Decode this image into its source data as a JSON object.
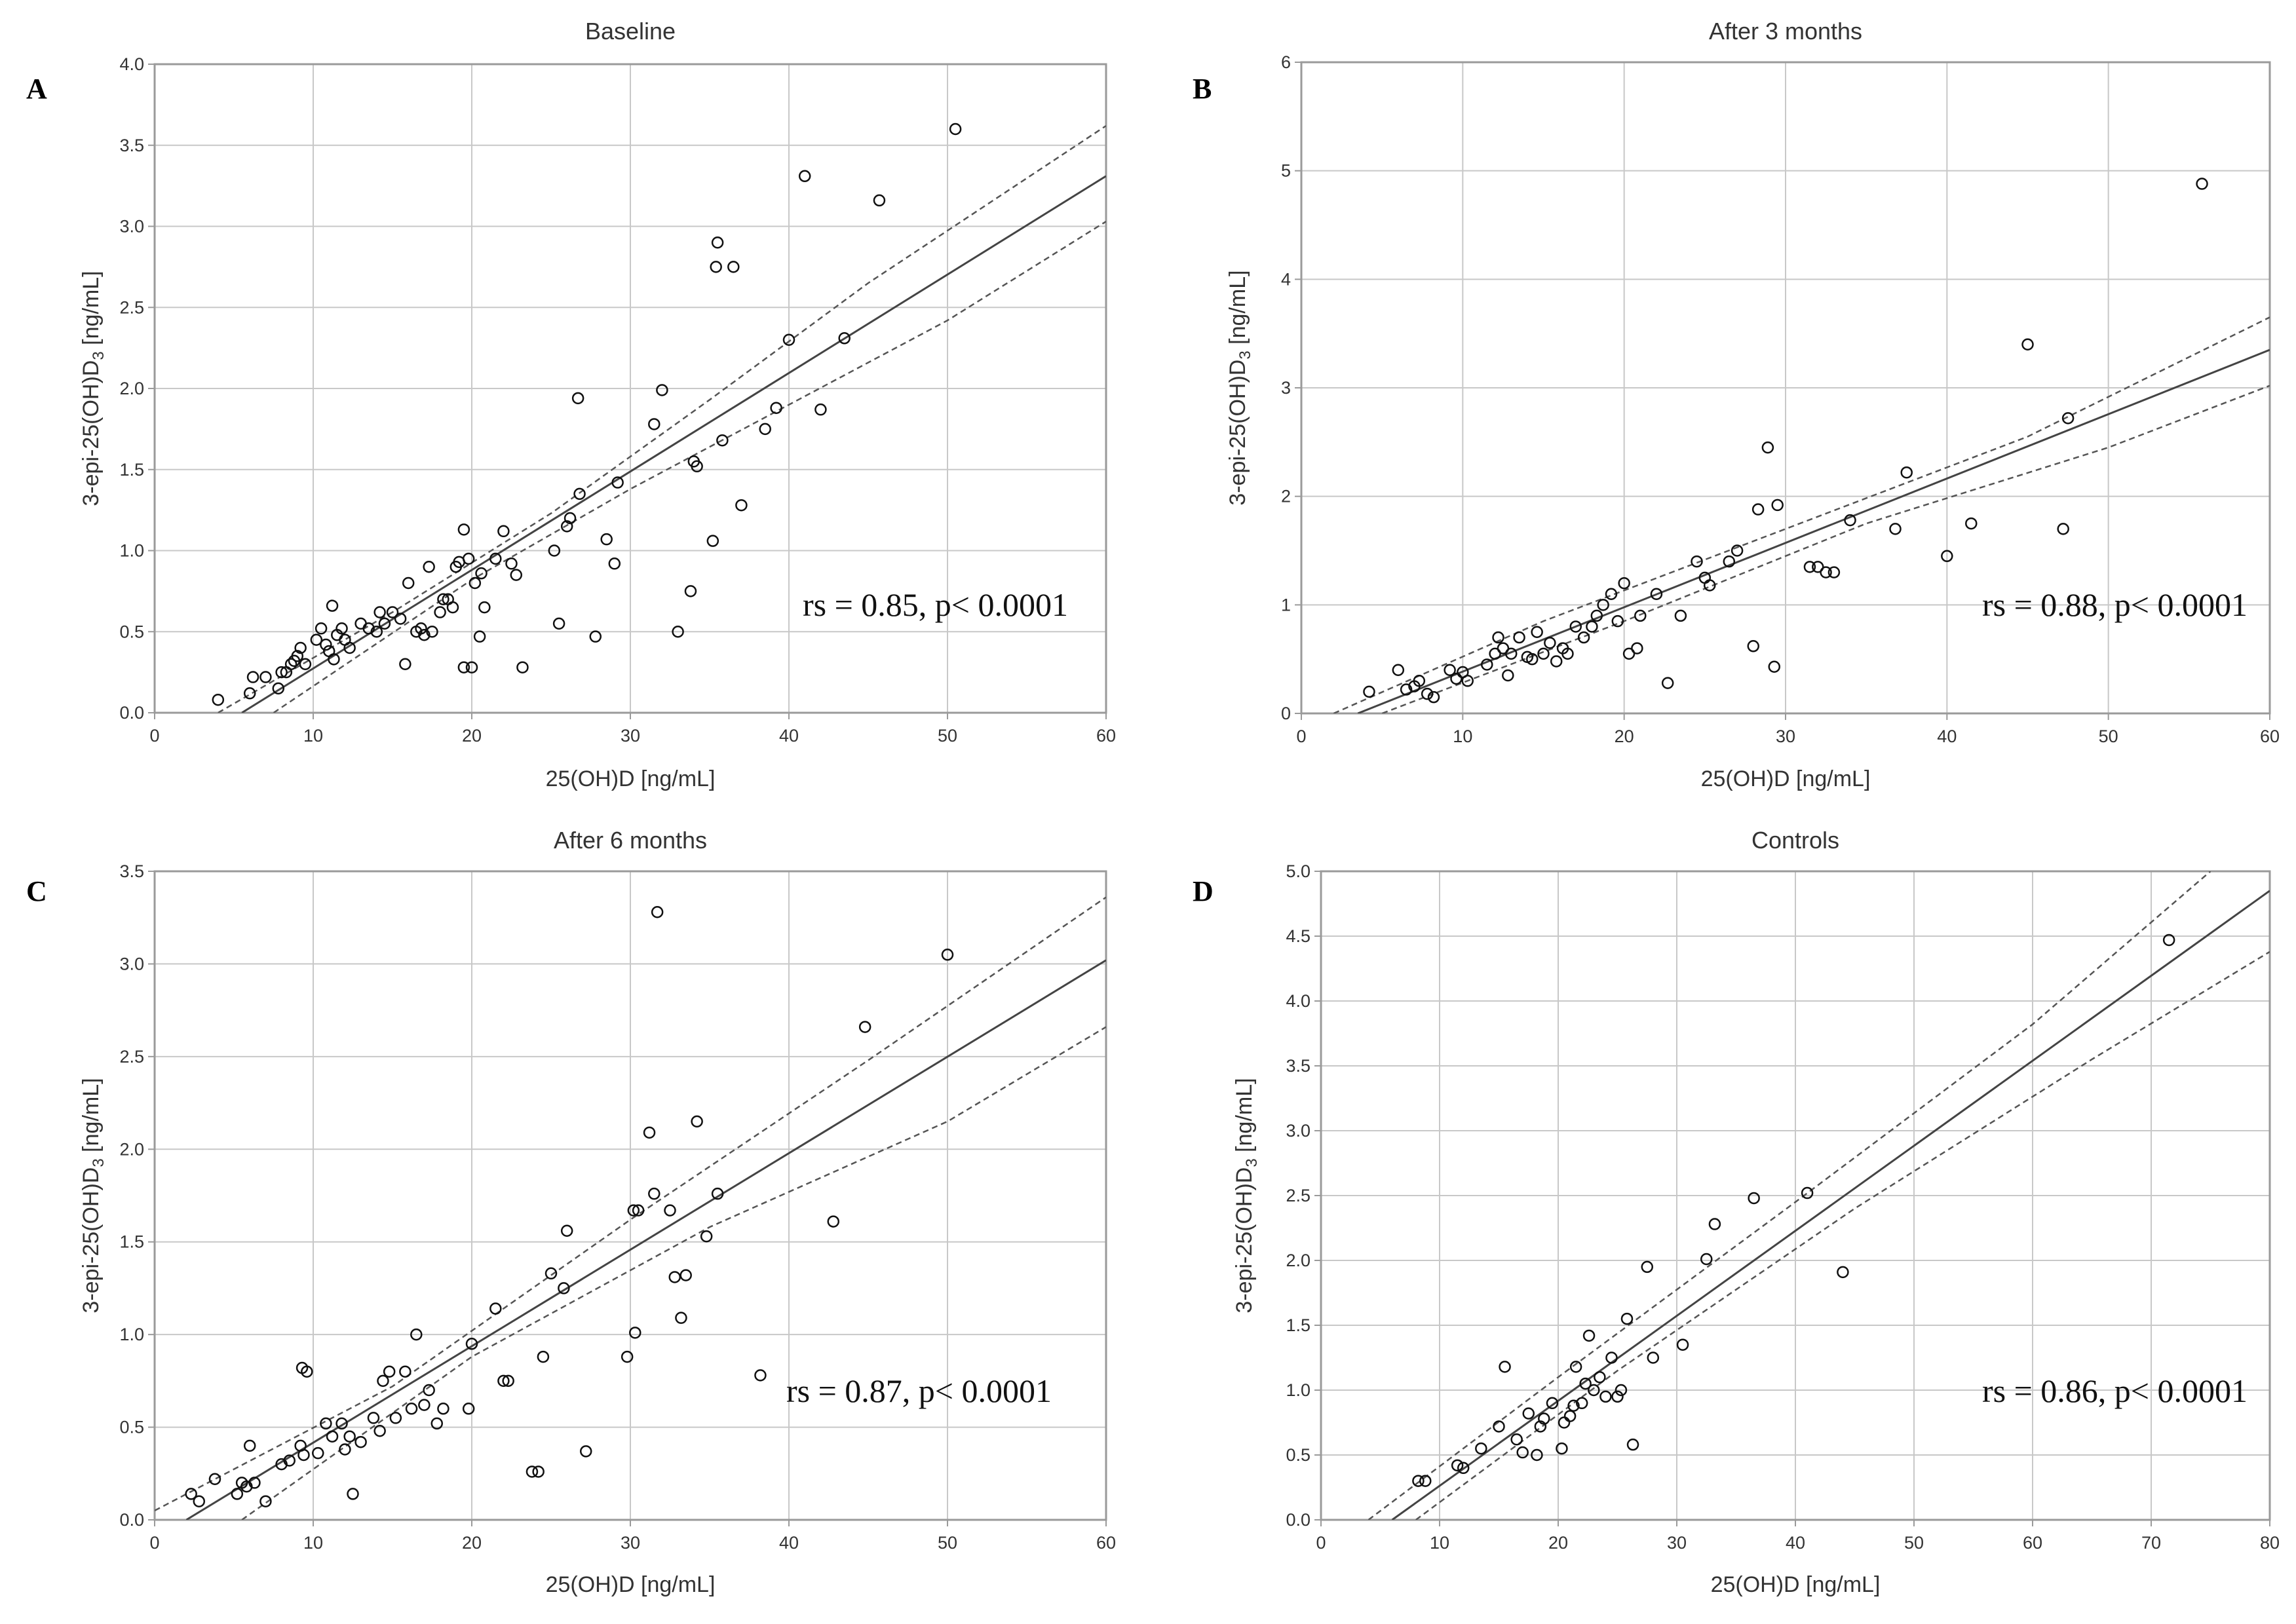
{
  "figure": {
    "colors": {
      "gridline": "#c8c8c8",
      "frame": "#9a9a9a",
      "points": "#111111",
      "fit": "#444444",
      "ci": "#555555"
    }
  },
  "chart_data": [
    {
      "type": "scatter",
      "panel": "A",
      "title": "Baseline",
      "xlabel": "25(OH)D [ng/mL]",
      "ylabel_main": "3-epi-25(OH)D",
      "ylabel_sub": "3",
      "ylabel_tail": " [ng/mL]",
      "xlim": [
        0,
        60
      ],
      "ylim": [
        0,
        4
      ],
      "xticks": [
        "0",
        "10",
        "20",
        "30",
        "40",
        "50",
        "60"
      ],
      "yticks": [
        "0.0",
        "0.5",
        "1.0",
        "1.5",
        "2.0",
        "2.5",
        "3.0",
        "3.5",
        "4.0"
      ],
      "grid": true,
      "annotation": "rs = 0.85, p< 0.0001",
      "fit": {
        "x0": 5.5,
        "y0": 0.0,
        "x1": 60,
        "y1": 3.31
      },
      "ci_upper": [
        [
          4,
          0.0
        ],
        [
          15,
          0.62
        ],
        [
          25,
          1.23
        ],
        [
          35,
          1.93
        ],
        [
          45,
          2.65
        ],
        [
          60,
          3.62
        ]
      ],
      "ci_lower": [
        [
          7.5,
          0.0
        ],
        [
          20,
          0.82
        ],
        [
          30,
          1.38
        ],
        [
          40,
          1.9
        ],
        [
          50,
          2.42
        ],
        [
          60,
          3.03
        ]
      ],
      "points": [
        [
          4,
          0.08
        ],
        [
          6,
          0.12
        ],
        [
          6.2,
          0.22
        ],
        [
          7,
          0.22
        ],
        [
          7.8,
          0.15
        ],
        [
          8.0,
          0.25
        ],
        [
          8.3,
          0.25
        ],
        [
          8.6,
          0.3
        ],
        [
          8.8,
          0.32
        ],
        [
          9.0,
          0.35
        ],
        [
          9.2,
          0.4
        ],
        [
          9.5,
          0.3
        ],
        [
          10.2,
          0.45
        ],
        [
          10.5,
          0.52
        ],
        [
          10.8,
          0.42
        ],
        [
          11.0,
          0.38
        ],
        [
          11.2,
          0.66
        ],
        [
          11.3,
          0.33
        ],
        [
          11.5,
          0.48
        ],
        [
          11.8,
          0.52
        ],
        [
          12.0,
          0.45
        ],
        [
          12.3,
          0.4
        ],
        [
          13.0,
          0.55
        ],
        [
          13.5,
          0.52
        ],
        [
          14.0,
          0.5
        ],
        [
          14.2,
          0.62
        ],
        [
          14.5,
          0.55
        ],
        [
          15.0,
          0.62
        ],
        [
          15.5,
          0.58
        ],
        [
          15.8,
          0.3
        ],
        [
          16.0,
          0.8
        ],
        [
          16.5,
          0.5
        ],
        [
          16.8,
          0.52
        ],
        [
          17.0,
          0.48
        ],
        [
          17.3,
          0.9
        ],
        [
          17.5,
          0.5
        ],
        [
          18.0,
          0.62
        ],
        [
          18.2,
          0.7
        ],
        [
          18.5,
          0.7
        ],
        [
          18.8,
          0.65
        ],
        [
          19.0,
          0.9
        ],
        [
          19.2,
          0.93
        ],
        [
          19.5,
          1.13
        ],
        [
          19.8,
          0.95
        ],
        [
          19.5,
          0.28
        ],
        [
          20.0,
          0.28
        ],
        [
          20.2,
          0.8
        ],
        [
          20.5,
          0.47
        ],
        [
          20.6,
          0.86
        ],
        [
          20.8,
          0.65
        ],
        [
          21.5,
          0.95
        ],
        [
          22.0,
          1.12
        ],
        [
          22.5,
          0.92
        ],
        [
          22.8,
          0.85
        ],
        [
          23.2,
          0.28
        ],
        [
          25.2,
          1.0
        ],
        [
          25.5,
          0.55
        ],
        [
          26.0,
          1.15
        ],
        [
          26.2,
          1.2
        ],
        [
          26.7,
          1.94
        ],
        [
          26.8,
          1.35
        ],
        [
          27.8,
          0.47
        ],
        [
          28.5,
          1.07
        ],
        [
          29.0,
          0.92
        ],
        [
          29.2,
          1.42
        ],
        [
          31.5,
          1.78
        ],
        [
          32.0,
          1.99
        ],
        [
          33.0,
          0.5
        ],
        [
          33.8,
          0.75
        ],
        [
          34.0,
          1.55
        ],
        [
          34.2,
          1.52
        ],
        [
          35.2,
          1.06
        ],
        [
          35.4,
          2.75
        ],
        [
          35.5,
          2.9
        ],
        [
          35.8,
          1.68
        ],
        [
          36.5,
          2.75
        ],
        [
          37.0,
          1.28
        ],
        [
          38.5,
          1.75
        ],
        [
          39.2,
          1.88
        ],
        [
          40.0,
          2.3
        ],
        [
          41.0,
          3.31
        ],
        [
          42.0,
          1.87
        ],
        [
          43.5,
          2.31
        ],
        [
          45.7,
          3.16
        ],
        [
          50.5,
          3.6
        ]
      ]
    },
    {
      "type": "scatter",
      "panel": "B",
      "title": "After 3 months",
      "xlabel": "25(OH)D [ng/mL]",
      "ylabel_main": "3-epi-25(OH)D",
      "ylabel_sub": "3",
      "ylabel_tail": " [ng/mL]",
      "xlim": [
        0,
        60
      ],
      "ylim": [
        0,
        6
      ],
      "xticks": [
        "0",
        "10",
        "20",
        "30",
        "40",
        "50",
        "60"
      ],
      "yticks": [
        "0",
        "1",
        "2",
        "3",
        "4",
        "5",
        "6"
      ],
      "grid": true,
      "annotation": "rs = 0.88, p< 0.0001",
      "fit": {
        "x0": 3.5,
        "y0": 0.0,
        "x1": 60,
        "y1": 3.35
      },
      "ci_upper": [
        [
          2,
          0.0
        ],
        [
          15,
          0.85
        ],
        [
          30,
          1.7
        ],
        [
          45,
          2.55
        ],
        [
          60,
          3.65
        ]
      ],
      "ci_lower": [
        [
          5,
          0.0
        ],
        [
          20,
          0.85
        ],
        [
          35,
          1.75
        ],
        [
          50,
          2.45
        ],
        [
          60,
          3.02
        ]
      ],
      "points": [
        [
          4.2,
          0.2
        ],
        [
          6,
          0.4
        ],
        [
          6.5,
          0.22
        ],
        [
          7.0,
          0.25
        ],
        [
          7.3,
          0.3
        ],
        [
          7.8,
          0.18
        ],
        [
          8.2,
          0.15
        ],
        [
          9.2,
          0.4
        ],
        [
          9.6,
          0.32
        ],
        [
          10.0,
          0.38
        ],
        [
          10.3,
          0.3
        ],
        [
          11.5,
          0.45
        ],
        [
          12.0,
          0.55
        ],
        [
          12.2,
          0.7
        ],
        [
          12.5,
          0.6
        ],
        [
          12.8,
          0.35
        ],
        [
          13.0,
          0.55
        ],
        [
          13.5,
          0.7
        ],
        [
          14.0,
          0.52
        ],
        [
          14.3,
          0.5
        ],
        [
          14.6,
          0.75
        ],
        [
          15.0,
          0.55
        ],
        [
          15.4,
          0.65
        ],
        [
          15.8,
          0.48
        ],
        [
          16.2,
          0.6
        ],
        [
          16.5,
          0.55
        ],
        [
          17.0,
          0.8
        ],
        [
          17.5,
          0.7
        ],
        [
          18.0,
          0.8
        ],
        [
          18.3,
          0.9
        ],
        [
          18.7,
          1.0
        ],
        [
          19.2,
          1.1
        ],
        [
          19.6,
          0.85
        ],
        [
          20.0,
          1.2
        ],
        [
          20.3,
          0.55
        ],
        [
          20.8,
          0.6
        ],
        [
          21.0,
          0.9
        ],
        [
          22.0,
          1.1
        ],
        [
          22.7,
          0.28
        ],
        [
          23.5,
          0.9
        ],
        [
          24.5,
          1.4
        ],
        [
          25.0,
          1.25
        ],
        [
          25.3,
          1.18
        ],
        [
          26.5,
          1.4
        ],
        [
          27.0,
          1.5
        ],
        [
          28.0,
          0.62
        ],
        [
          28.3,
          1.88
        ],
        [
          28.9,
          2.45
        ],
        [
          29.3,
          0.43
        ],
        [
          29.5,
          1.92
        ],
        [
          31.5,
          1.35
        ],
        [
          32.0,
          1.35
        ],
        [
          32.5,
          1.3
        ],
        [
          33.0,
          1.3
        ],
        [
          34.0,
          1.78
        ],
        [
          36.8,
          1.7
        ],
        [
          37.5,
          2.22
        ],
        [
          40.0,
          1.45
        ],
        [
          41.5,
          1.75
        ],
        [
          45.0,
          3.4
        ],
        [
          47.2,
          1.7
        ],
        [
          47.5,
          2.72
        ],
        [
          55.8,
          4.88
        ]
      ]
    },
    {
      "type": "scatter",
      "panel": "C",
      "title": "After 6 months",
      "xlabel": "25(OH)D [ng/mL]",
      "ylabel_main": "3-epi-25(OH)D",
      "ylabel_sub": "3",
      "ylabel_tail": " [ng/mL]",
      "xlim": [
        0,
        60
      ],
      "ylim": [
        0,
        3.5
      ],
      "xticks": [
        "0",
        "10",
        "20",
        "30",
        "40",
        "50",
        "60"
      ],
      "yticks": [
        "0.0",
        "0.5",
        "1.0",
        "1.5",
        "2.0",
        "2.5",
        "3.0",
        "3.5"
      ],
      "grid": true,
      "annotation": "rs = 0.87, p< 0.0001",
      "fit": {
        "x0": 2.0,
        "y0": 0.0,
        "x1": 60,
        "y1": 3.02
      },
      "ci_upper": [
        [
          0,
          0.05
        ],
        [
          15,
          0.72
        ],
        [
          30,
          1.62
        ],
        [
          45,
          2.48
        ],
        [
          60,
          3.36
        ]
      ],
      "ci_lower": [
        [
          5.5,
          0.0
        ],
        [
          20,
          0.88
        ],
        [
          35,
          1.58
        ],
        [
          50,
          2.15
        ],
        [
          60,
          2.66
        ]
      ],
      "points": [
        [
          2.3,
          0.14
        ],
        [
          2.8,
          0.1
        ],
        [
          3.8,
          0.22
        ],
        [
          5.2,
          0.14
        ],
        [
          5.5,
          0.2
        ],
        [
          5.8,
          0.18
        ],
        [
          6.0,
          0.4
        ],
        [
          6.3,
          0.2
        ],
        [
          7.0,
          0.1
        ],
        [
          8.0,
          0.3
        ],
        [
          8.5,
          0.32
        ],
        [
          9.2,
          0.4
        ],
        [
          9.4,
          0.35
        ],
        [
          9.3,
          0.82
        ],
        [
          9.6,
          0.8
        ],
        [
          10.3,
          0.36
        ],
        [
          10.8,
          0.52
        ],
        [
          11.2,
          0.45
        ],
        [
          11.8,
          0.52
        ],
        [
          12.0,
          0.38
        ],
        [
          12.3,
          0.45
        ],
        [
          12.5,
          0.14
        ],
        [
          13.0,
          0.42
        ],
        [
          13.8,
          0.55
        ],
        [
          14.2,
          0.48
        ],
        [
          14.4,
          0.75
        ],
        [
          14.8,
          0.8
        ],
        [
          15.2,
          0.55
        ],
        [
          15.8,
          0.8
        ],
        [
          16.2,
          0.6
        ],
        [
          16.5,
          1.0
        ],
        [
          17.0,
          0.62
        ],
        [
          17.3,
          0.7
        ],
        [
          17.8,
          0.52
        ],
        [
          18.2,
          0.6
        ],
        [
          19.8,
          0.6
        ],
        [
          20.0,
          0.95
        ],
        [
          21.5,
          1.14
        ],
        [
          22.0,
          0.75
        ],
        [
          22.3,
          0.75
        ],
        [
          23.8,
          0.26
        ],
        [
          24.2,
          0.26
        ],
        [
          24.5,
          0.88
        ],
        [
          25.0,
          1.33
        ],
        [
          25.8,
          1.25
        ],
        [
          26.0,
          1.56
        ],
        [
          27.2,
          0.37
        ],
        [
          29.8,
          0.88
        ],
        [
          30.2,
          1.67
        ],
        [
          30.3,
          1.01
        ],
        [
          30.5,
          1.67
        ],
        [
          31.2,
          2.09
        ],
        [
          31.5,
          1.76
        ],
        [
          31.7,
          3.28
        ],
        [
          32.5,
          1.67
        ],
        [
          32.8,
          1.31
        ],
        [
          33.2,
          1.09
        ],
        [
          33.5,
          1.32
        ],
        [
          34.2,
          2.15
        ],
        [
          34.8,
          1.53
        ],
        [
          35.5,
          1.76
        ],
        [
          38.2,
          0.78
        ],
        [
          42.8,
          1.61
        ],
        [
          44.8,
          2.66
        ],
        [
          50.0,
          3.05
        ]
      ]
    },
    {
      "type": "scatter",
      "panel": "D",
      "title": "Controls",
      "xlabel": "25(OH)D [ng/mL]",
      "ylabel_main": "3-epi-25(OH)D",
      "ylabel_sub": "3",
      "ylabel_tail": " [ng/mL]",
      "xlim": [
        0,
        80
      ],
      "ylim": [
        0,
        5
      ],
      "xticks": [
        "0",
        "10",
        "20",
        "30",
        "40",
        "50",
        "60",
        "70",
        "80"
      ],
      "yticks": [
        "0.0",
        "0.5",
        "1.0",
        "1.5",
        "2.0",
        "2.5",
        "3.0",
        "3.5",
        "4.0",
        "4.5",
        "5.0"
      ],
      "grid": true,
      "annotation": "rs = 0.86, p< 0.0001",
      "fit": {
        "x0": 6.0,
        "y0": 0.0,
        "x1": 80,
        "y1": 4.85
      },
      "ci_upper": [
        [
          4,
          0.0
        ],
        [
          20,
          1.1
        ],
        [
          40,
          2.45
        ],
        [
          60,
          3.82
        ],
        [
          75,
          5.0
        ]
      ],
      "ci_lower": [
        [
          8,
          0.0
        ],
        [
          25,
          1.15
        ],
        [
          45,
          2.4
        ],
        [
          65,
          3.55
        ],
        [
          80,
          4.38
        ]
      ],
      "points": [
        [
          8.2,
          0.3
        ],
        [
          8.8,
          0.3
        ],
        [
          11.5,
          0.42
        ],
        [
          12.0,
          0.4
        ],
        [
          13.5,
          0.55
        ],
        [
          15.0,
          0.72
        ],
        [
          15.5,
          1.18
        ],
        [
          16.5,
          0.62
        ],
        [
          17.0,
          0.52
        ],
        [
          17.5,
          0.82
        ],
        [
          18.2,
          0.5
        ],
        [
          18.5,
          0.72
        ],
        [
          18.8,
          0.78
        ],
        [
          19.5,
          0.9
        ],
        [
          20.3,
          0.55
        ],
        [
          20.5,
          0.75
        ],
        [
          21.0,
          0.8
        ],
        [
          21.3,
          0.88
        ],
        [
          21.5,
          1.18
        ],
        [
          22.0,
          0.9
        ],
        [
          22.3,
          1.05
        ],
        [
          22.6,
          1.42
        ],
        [
          23.0,
          1.0
        ],
        [
          23.5,
          1.1
        ],
        [
          24.0,
          0.95
        ],
        [
          24.5,
          1.25
        ],
        [
          25.0,
          0.95
        ],
        [
          25.3,
          1.0
        ],
        [
          25.8,
          1.55
        ],
        [
          26.3,
          0.58
        ],
        [
          27.5,
          1.95
        ],
        [
          28.0,
          1.25
        ],
        [
          30.5,
          1.35
        ],
        [
          32.5,
          2.01
        ],
        [
          33.2,
          2.28
        ],
        [
          36.5,
          2.48
        ],
        [
          41.0,
          2.52
        ],
        [
          44.0,
          1.91
        ],
        [
          71.5,
          4.47
        ]
      ]
    }
  ]
}
